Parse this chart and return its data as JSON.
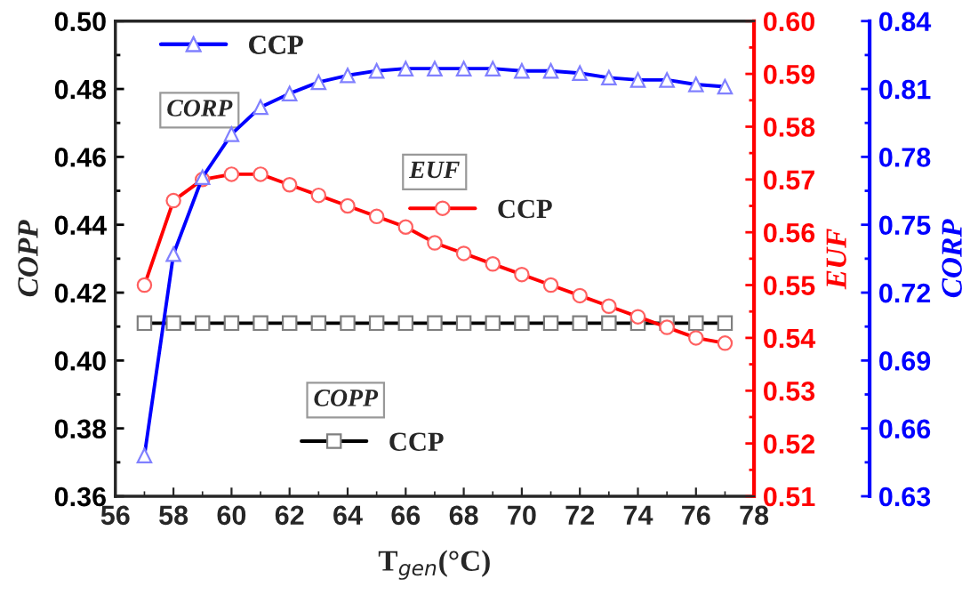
{
  "chart_data": {
    "type": "line",
    "x": [
      57,
      58,
      59,
      60,
      61,
      62,
      63,
      64,
      65,
      66,
      67,
      68,
      69,
      70,
      71,
      72,
      73,
      74,
      75,
      76,
      77
    ],
    "series": [
      {
        "name": "CCP",
        "color": "#000000",
        "marker": "square",
        "axis": "y",
        "values": [
          0.411,
          0.411,
          0.411,
          0.411,
          0.411,
          0.411,
          0.411,
          0.411,
          0.411,
          0.411,
          0.411,
          0.411,
          0.411,
          0.411,
          0.411,
          0.411,
          0.411,
          0.411,
          0.411,
          0.411,
          0.411
        ]
      },
      {
        "name": "CCP",
        "color": "#ff0000",
        "marker": "circle",
        "axis": "y2",
        "values": [
          0.55,
          0.566,
          0.57,
          0.571,
          0.571,
          0.569,
          0.567,
          0.565,
          0.563,
          0.561,
          0.558,
          0.556,
          0.554,
          0.552,
          0.55,
          0.548,
          0.546,
          0.544,
          0.542,
          0.54,
          0.539
        ]
      },
      {
        "name": "CCP",
        "color": "#0000ff",
        "marker": "triangle",
        "axis": "y3",
        "values": [
          0.648,
          0.737,
          0.771,
          0.79,
          0.802,
          0.808,
          0.813,
          0.816,
          0.818,
          0.819,
          0.819,
          0.819,
          0.819,
          0.818,
          0.818,
          0.817,
          0.815,
          0.814,
          0.814,
          0.812,
          0.811
        ]
      }
    ],
    "annotations": [
      "CORP",
      "EUF",
      "COPP"
    ],
    "xlabel": "T$_{gen}$(°C)",
    "ylabel": "COPP",
    "y2label": "EUF",
    "y3label": "CORP",
    "xlim": [
      56,
      78
    ],
    "xticks": [
      56,
      58,
      60,
      62,
      64,
      66,
      68,
      70,
      72,
      74,
      76,
      78
    ],
    "ylim": [
      0.36,
      0.5
    ],
    "yticks": [
      {
        "value": 0.36,
        "label": "0.36"
      },
      {
        "value": 0.38,
        "label": "0.38"
      },
      {
        "value": 0.4,
        "label": "0.40"
      },
      {
        "value": 0.42,
        "label": "0.42"
      },
      {
        "value": 0.44,
        "label": "0.44"
      },
      {
        "value": 0.46,
        "label": "0.46"
      },
      {
        "value": 0.48,
        "label": "0.48"
      },
      {
        "value": 0.5,
        "label": "0.50"
      }
    ],
    "y2lim": [
      0.51,
      0.6
    ],
    "y2ticks": [
      0.51,
      0.52,
      0.53,
      0.54,
      0.55,
      0.56,
      0.57,
      0.58,
      0.59,
      {
        "value": 0.6,
        "label": "0.60"
      }
    ],
    "y3lim": [
      0.63,
      0.84
    ],
    "y3ticks": [
      0.63,
      0.66,
      0.69,
      0.72,
      0.75,
      0.78,
      0.81,
      0.84
    ],
    "legend": "top left",
    "grid": false,
    "line_style": "solid"
  }
}
